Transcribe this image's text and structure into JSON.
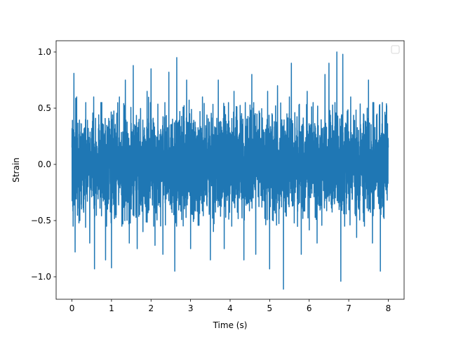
{
  "chart_data": {
    "type": "line",
    "title": "",
    "xlabel": "Time (s)",
    "ylabel": "Strain",
    "xlim": [
      -0.4,
      8.4
    ],
    "ylim": [
      -1.2,
      1.1
    ],
    "x_ticks": [
      0,
      1,
      2,
      3,
      4,
      5,
      6,
      7,
      8
    ],
    "x_tick_labels": [
      "0",
      "1",
      "2",
      "3",
      "4",
      "5",
      "6",
      "7",
      "8"
    ],
    "y_ticks": [
      -1.0,
      -0.5,
      0.0,
      0.5,
      1.0
    ],
    "y_tick_labels": [
      "−1.0",
      "−0.5",
      "0.0",
      "0.5",
      "1.0"
    ],
    "grid": false,
    "legend": {
      "placement": "top-right",
      "entries": []
    },
    "series": [
      {
        "color": "#1f77b4",
        "description_of_signal": "dense noise-like strain signal sampled over 0 to 8 s",
        "x_range": [
          0,
          8
        ],
        "points": [
          [
            0.0,
            0.15
          ],
          [
            0.03,
            -0.55
          ],
          [
            0.05,
            0.81
          ],
          [
            0.08,
            -0.78
          ],
          [
            0.12,
            0.6
          ],
          [
            0.2,
            -0.5
          ],
          [
            0.35,
            0.55
          ],
          [
            0.45,
            -0.7
          ],
          [
            0.55,
            0.6
          ],
          [
            0.57,
            -0.93
          ],
          [
            0.75,
            0.5
          ],
          [
            0.85,
            -0.85
          ],
          [
            1.0,
            -0.92
          ],
          [
            1.2,
            0.6
          ],
          [
            1.35,
            0.75
          ],
          [
            1.45,
            -0.7
          ],
          [
            1.55,
            0.88
          ],
          [
            1.65,
            -0.75
          ],
          [
            1.9,
            0.65
          ],
          [
            2.0,
            0.85
          ],
          [
            2.1,
            -0.72
          ],
          [
            2.3,
            -0.8
          ],
          [
            2.45,
            0.82
          ],
          [
            2.6,
            -0.95
          ],
          [
            2.65,
            0.95
          ],
          [
            2.9,
            0.75
          ],
          [
            3.0,
            -0.75
          ],
          [
            3.3,
            0.6
          ],
          [
            3.5,
            -0.85
          ],
          [
            3.7,
            0.75
          ],
          [
            3.85,
            -0.75
          ],
          [
            4.1,
            0.65
          ],
          [
            4.35,
            -0.85
          ],
          [
            4.55,
            0.8
          ],
          [
            4.65,
            -0.8
          ],
          [
            4.95,
            0.65
          ],
          [
            5.0,
            -0.93
          ],
          [
            5.2,
            0.7
          ],
          [
            5.35,
            -1.11
          ],
          [
            5.5,
            0.6
          ],
          [
            5.55,
            0.9
          ],
          [
            5.8,
            -0.8
          ],
          [
            5.95,
            0.65
          ],
          [
            6.1,
            0.55
          ],
          [
            6.2,
            -0.7
          ],
          [
            6.4,
            0.8
          ],
          [
            6.5,
            0.9
          ],
          [
            6.7,
            1.0
          ],
          [
            6.8,
            -1.04
          ],
          [
            6.85,
            0.98
          ],
          [
            7.05,
            0.6
          ],
          [
            7.2,
            -0.65
          ],
          [
            7.5,
            0.75
          ],
          [
            7.6,
            -0.7
          ],
          [
            7.8,
            -0.95
          ],
          [
            7.85,
            0.55
          ],
          [
            8.0,
            0.15
          ]
        ]
      }
    ]
  }
}
